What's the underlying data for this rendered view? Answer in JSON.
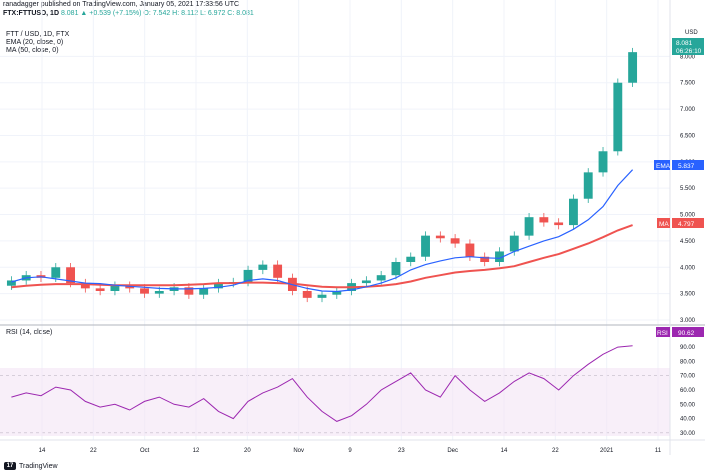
{
  "header": {
    "published_by": "ranadagger published on TradingView.com, January 05, 2021 17:33:56 UTC",
    "symbol_line": "FTX:FTTUSD, 1D",
    "ohlc": "8.081 ▲ +0.539 (+7.15%) O: 7.542 H: 8.112 L: 6.972 C: 8.081"
  },
  "legends": {
    "title": "FTT / USD, 1D, FTX",
    "ema": "EMA (20, close, 0)",
    "ma": "MA (50, close, 0)",
    "rsi": "RSI (14, close)"
  },
  "currency_label": "USD",
  "price_tags": {
    "last": "8.081",
    "countdown": "06:26:10",
    "ema_name": "EMA",
    "ema_value": "5.837",
    "ma_name": "MA",
    "ma_value": "4.797",
    "rsi_name": "RSI",
    "rsi_value": "90.62"
  },
  "footer": {
    "brand": "TradingView",
    "logo": "17"
  },
  "colors": {
    "up": "#26a69a",
    "down": "#ef5350",
    "ema": "#2962ff",
    "ma": "#ef5350",
    "rsi": "#9c27b0",
    "rsi_band": "#f3e5f5"
  },
  "chart_data": [
    {
      "type": "candlestick",
      "title": "FTT / USD, 1D, FTX",
      "ylim": [
        3.0,
        8.5
      ],
      "y_ticks": [
        "8.000",
        "7.500",
        "7.000",
        "6.500",
        "6.000",
        "5.500",
        "5.000",
        "4.500",
        "4.000",
        "3.500",
        "3.000"
      ],
      "x_ticks": [
        "14",
        "22",
        "Oct",
        "12",
        "20",
        "Nov",
        "9",
        "23",
        "Dec",
        "14",
        "22",
        "2021",
        "11"
      ],
      "series": [
        {
          "name": "EMA (20, close, 0)",
          "values": [
            3.72,
            3.8,
            3.82,
            3.78,
            3.74,
            3.7,
            3.69,
            3.66,
            3.64,
            3.62,
            3.6,
            3.59,
            3.59,
            3.6,
            3.62,
            3.66,
            3.75,
            3.78,
            3.75,
            3.67,
            3.6,
            3.55,
            3.54,
            3.57,
            3.63,
            3.7,
            3.8,
            3.95,
            4.05,
            4.12,
            4.18,
            4.2,
            4.18,
            4.17,
            4.3,
            4.4,
            4.5,
            4.58,
            4.72,
            4.9,
            5.15,
            5.55,
            5.85
          ]
        },
        {
          "name": "MA (50, close, 0)",
          "values": [
            3.62,
            3.65,
            3.67,
            3.68,
            3.68,
            3.68,
            3.67,
            3.66,
            3.66,
            3.66,
            3.66,
            3.66,
            3.67,
            3.68,
            3.7,
            3.7,
            3.71,
            3.71,
            3.7,
            3.69,
            3.66,
            3.63,
            3.62,
            3.62,
            3.63,
            3.65,
            3.68,
            3.73,
            3.8,
            3.85,
            3.9,
            3.93,
            3.95,
            3.98,
            4.02,
            4.1,
            4.18,
            4.25,
            4.35,
            4.45,
            4.57,
            4.7,
            4.8
          ]
        }
      ]
    },
    {
      "type": "line",
      "title": "RSI (14, close)",
      "ylim": [
        25,
        95
      ],
      "y_ticks": [
        "90.00",
        "80.00",
        "70.00",
        "60.00",
        "50.00",
        "40.00",
        "30.00"
      ],
      "series": [
        {
          "name": "RSI (14, close)",
          "values": [
            55,
            58,
            56,
            62,
            60,
            52,
            48,
            50,
            46,
            52,
            55,
            50,
            48,
            54,
            45,
            40,
            52,
            58,
            62,
            68,
            55,
            45,
            38,
            42,
            50,
            60,
            66,
            72,
            60,
            55,
            70,
            60,
            52,
            58,
            66,
            72,
            68,
            60,
            70,
            78,
            85,
            90,
            91
          ]
        }
      ]
    }
  ]
}
